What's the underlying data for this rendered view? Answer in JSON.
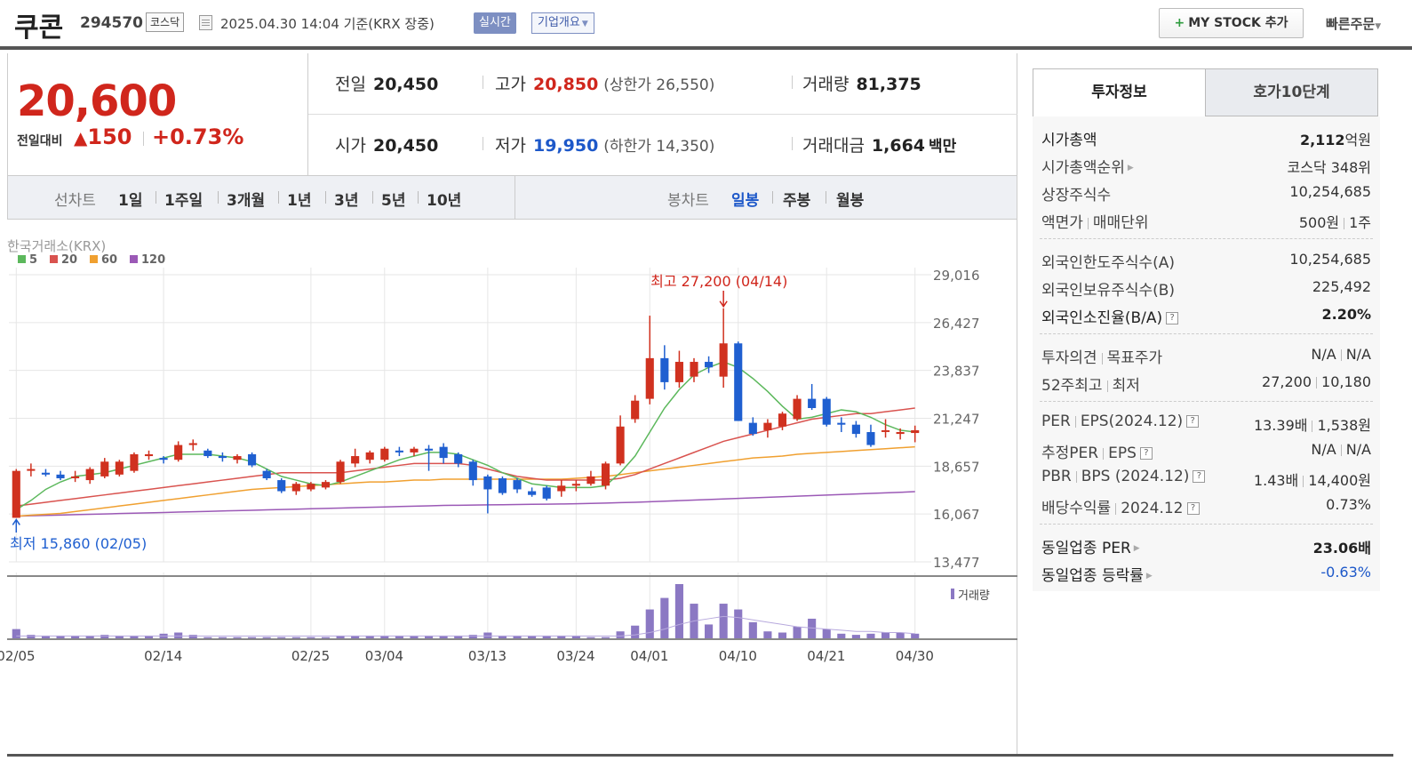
{
  "header": {
    "name": "쿠콘",
    "code": "294570",
    "market": "코스닥",
    "timestamp": "2025.04.30 14:04  기준(KRX 장중)",
    "realtime": "실시간",
    "company_info": "기업개요",
    "mystock": "MY STOCK 추가",
    "quick_order": "빠른주문"
  },
  "price": {
    "current": "20,600",
    "change_label": "전일대비",
    "change_arrow": "▲",
    "change": "150",
    "change_pct": "+0.73%"
  },
  "quote": {
    "prev_label": "전일",
    "prev": "20,450",
    "high_label": "고가",
    "high": "20,850",
    "upper_limit": "(상한가 26,550)",
    "volume_label": "거래량",
    "volume": "81,375",
    "open_label": "시가",
    "open": "20,450",
    "low_label": "저가",
    "low": "19,950",
    "lower_limit": "(하한가 14,350)",
    "amount_label": "거래대금",
    "amount": "1,664",
    "amount_unit": "백만"
  },
  "periods": {
    "line_label": "선차트",
    "line": [
      "1일",
      "1주일",
      "3개월",
      "1년",
      "3년",
      "5년",
      "10년"
    ],
    "candle_label": "봉차트",
    "candle": [
      "일봉",
      "주봉",
      "월봉"
    ]
  },
  "chart_data": {
    "type": "candlestick",
    "source_label": "한국거래소(KRX)",
    "legend": [
      {
        "name": "5",
        "color": "#5cb85c"
      },
      {
        "name": "20",
        "color": "#d9534f"
      },
      {
        "name": "60",
        "color": "#f0a030"
      },
      {
        "name": "120",
        "color": "#9b59b6"
      }
    ],
    "y_ticks": [
      "29,016",
      "26,427",
      "23,837",
      "21,247",
      "18,657",
      "16,067",
      "13,477"
    ],
    "ylim": [
      13477,
      29016
    ],
    "x_ticks": [
      "02/05",
      "02/14",
      "02/25",
      "03/04",
      "03/13",
      "03/24",
      "04/01",
      "04/10",
      "04/21",
      "04/30"
    ],
    "max_annotation": "최고 27,200 (04/14)",
    "min_annotation": "최저 15,860 (02/05)",
    "volume_label": "거래량",
    "candles": [
      {
        "o": 15860,
        "h": 18500,
        "l": 15860,
        "c": 18400
      },
      {
        "o": 18450,
        "h": 18800,
        "l": 18100,
        "c": 18500
      },
      {
        "o": 18300,
        "h": 18500,
        "l": 18100,
        "c": 18200
      },
      {
        "o": 18200,
        "h": 18400,
        "l": 17900,
        "c": 18000
      },
      {
        "o": 18000,
        "h": 18400,
        "l": 17800,
        "c": 18100
      },
      {
        "o": 17900,
        "h": 18600,
        "l": 17700,
        "c": 18500
      },
      {
        "o": 18100,
        "h": 19100,
        "l": 18000,
        "c": 18900
      },
      {
        "o": 18200,
        "h": 19000,
        "l": 18100,
        "c": 18900
      },
      {
        "o": 18400,
        "h": 19400,
        "l": 18300,
        "c": 19300
      },
      {
        "o": 19200,
        "h": 19500,
        "l": 19000,
        "c": 19300
      },
      {
        "o": 19100,
        "h": 19200,
        "l": 18800,
        "c": 19000
      },
      {
        "o": 19000,
        "h": 20000,
        "l": 18900,
        "c": 19800
      },
      {
        "o": 19800,
        "h": 20100,
        "l": 19500,
        "c": 19900
      },
      {
        "o": 19500,
        "h": 19600,
        "l": 19100,
        "c": 19200
      },
      {
        "o": 19200,
        "h": 19400,
        "l": 18900,
        "c": 19100
      },
      {
        "o": 19000,
        "h": 19300,
        "l": 18800,
        "c": 19200
      },
      {
        "o": 19300,
        "h": 19400,
        "l": 18600,
        "c": 18700
      },
      {
        "o": 18400,
        "h": 18500,
        "l": 17900,
        "c": 18000
      },
      {
        "o": 17900,
        "h": 18000,
        "l": 17200,
        "c": 17300
      },
      {
        "o": 17300,
        "h": 17800,
        "l": 17100,
        "c": 17700
      },
      {
        "o": 17400,
        "h": 17800,
        "l": 17300,
        "c": 17700
      },
      {
        "o": 17500,
        "h": 17900,
        "l": 17400,
        "c": 17800
      },
      {
        "o": 17800,
        "h": 19000,
        "l": 17700,
        "c": 18900
      },
      {
        "o": 18800,
        "h": 19600,
        "l": 18600,
        "c": 19200
      },
      {
        "o": 19000,
        "h": 19500,
        "l": 18800,
        "c": 19400
      },
      {
        "o": 19000,
        "h": 19700,
        "l": 18900,
        "c": 19600
      },
      {
        "o": 19500,
        "h": 19700,
        "l": 19200,
        "c": 19400
      },
      {
        "o": 19400,
        "h": 19700,
        "l": 19200,
        "c": 19600
      },
      {
        "o": 19600,
        "h": 19800,
        "l": 18400,
        "c": 19500
      },
      {
        "o": 19700,
        "h": 19900,
        "l": 18800,
        "c": 19100
      },
      {
        "o": 19300,
        "h": 19400,
        "l": 18600,
        "c": 18800
      },
      {
        "o": 18900,
        "h": 19000,
        "l": 17600,
        "c": 17900
      },
      {
        "o": 18100,
        "h": 18200,
        "l": 16100,
        "c": 17400
      },
      {
        "o": 18000,
        "h": 18100,
        "l": 17100,
        "c": 17200
      },
      {
        "o": 17900,
        "h": 18000,
        "l": 17200,
        "c": 17400
      },
      {
        "o": 17300,
        "h": 17500,
        "l": 17000,
        "c": 17100
      },
      {
        "o": 17500,
        "h": 17600,
        "l": 16800,
        "c": 16900
      },
      {
        "o": 17300,
        "h": 17900,
        "l": 17000,
        "c": 17600
      },
      {
        "o": 17600,
        "h": 17900,
        "l": 17300,
        "c": 17700
      },
      {
        "o": 17700,
        "h": 18400,
        "l": 17600,
        "c": 18100
      },
      {
        "o": 17600,
        "h": 18900,
        "l": 17400,
        "c": 18800
      },
      {
        "o": 18800,
        "h": 21400,
        "l": 18700,
        "c": 20800
      },
      {
        "o": 21200,
        "h": 22500,
        "l": 21000,
        "c": 22200
      },
      {
        "o": 22300,
        "h": 26800,
        "l": 22000,
        "c": 24500
      },
      {
        "o": 24500,
        "h": 25200,
        "l": 22800,
        "c": 23200
      },
      {
        "o": 23200,
        "h": 24900,
        "l": 22900,
        "c": 24300
      },
      {
        "o": 23500,
        "h": 24500,
        "l": 23200,
        "c": 24300
      },
      {
        "o": 24300,
        "h": 24600,
        "l": 23700,
        "c": 24000
      },
      {
        "o": 23500,
        "h": 27200,
        "l": 22900,
        "c": 25300
      },
      {
        "o": 25300,
        "h": 25400,
        "l": 21100,
        "c": 21100
      },
      {
        "o": 21000,
        "h": 21300,
        "l": 20300,
        "c": 20400
      },
      {
        "o": 20600,
        "h": 21200,
        "l": 20200,
        "c": 21000
      },
      {
        "o": 20800,
        "h": 21600,
        "l": 20600,
        "c": 21500
      },
      {
        "o": 21200,
        "h": 22500,
        "l": 21100,
        "c": 22300
      },
      {
        "o": 22300,
        "h": 23100,
        "l": 21700,
        "c": 21800
      },
      {
        "o": 22300,
        "h": 22400,
        "l": 20800,
        "c": 20900
      },
      {
        "o": 21000,
        "h": 21300,
        "l": 20500,
        "c": 20900
      },
      {
        "o": 20900,
        "h": 21100,
        "l": 20200,
        "c": 20400
      },
      {
        "o": 20500,
        "h": 20900,
        "l": 19700,
        "c": 19800
      },
      {
        "o": 20600,
        "h": 21200,
        "l": 20200,
        "c": 20600
      },
      {
        "o": 20400,
        "h": 20700,
        "l": 20100,
        "c": 20500
      },
      {
        "o": 20450,
        "h": 20850,
        "l": 19950,
        "c": 20600
      }
    ],
    "ma5": [
      16300,
      16800,
      17400,
      17800,
      18100,
      18200,
      18300,
      18500,
      18700,
      18900,
      19100,
      19300,
      19300,
      19300,
      19200,
      19100,
      18900,
      18500,
      18100,
      17900,
      17700,
      17600,
      17800,
      18100,
      18400,
      18700,
      19000,
      19200,
      19400,
      19400,
      19300,
      19000,
      18700,
      18300,
      18000,
      17700,
      17600,
      17500,
      17500,
      17500,
      17600,
      18300,
      19200,
      20500,
      21800,
      22800,
      23600,
      24000,
      24300,
      24000,
      23400,
      22700,
      21900,
      21200,
      21300,
      21500,
      21700,
      21600,
      21300,
      20900,
      20600,
      20500
    ],
    "ma20": [
      16500,
      16600,
      16700,
      16800,
      16900,
      17000,
      17100,
      17200,
      17300,
      17400,
      17500,
      17600,
      17700,
      17800,
      17900,
      18000,
      18100,
      18200,
      18300,
      18300,
      18300,
      18300,
      18300,
      18400,
      18500,
      18600,
      18700,
      18800,
      18800,
      18800,
      18800,
      18700,
      18500,
      18300,
      18100,
      18000,
      17900,
      17900,
      17900,
      17900,
      17900,
      18000,
      18200,
      18500,
      18800,
      19100,
      19400,
      19700,
      20000,
      20200,
      20400,
      20600,
      20800,
      21000,
      21200,
      21300,
      21400,
      21500,
      21500,
      21600,
      21700,
      21800
    ],
    "ma60": [
      15950,
      16000,
      16050,
      16100,
      16200,
      16300,
      16400,
      16500,
      16600,
      16700,
      16800,
      16900,
      17000,
      17100,
      17200,
      17300,
      17400,
      17450,
      17500,
      17550,
      17600,
      17650,
      17700,
      17750,
      17800,
      17800,
      17850,
      17900,
      17900,
      17950,
      17950,
      17950,
      17950,
      17950,
      17950,
      17950,
      17950,
      17950,
      18000,
      18050,
      18100,
      18200,
      18300,
      18400,
      18500,
      18600,
      18700,
      18800,
      18900,
      19000,
      19100,
      19150,
      19200,
      19300,
      19350,
      19400,
      19450,
      19500,
      19550,
      19600,
      19650,
      19700
    ],
    "ma120": [
      15950,
      15970,
      15990,
      16010,
      16030,
      16050,
      16070,
      16090,
      16110,
      16130,
      16150,
      16170,
      16190,
      16210,
      16230,
      16250,
      16270,
      16290,
      16310,
      16330,
      16350,
      16370,
      16390,
      16410,
      16430,
      16450,
      16470,
      16490,
      16510,
      16530,
      16540,
      16550,
      16560,
      16570,
      16580,
      16590,
      16600,
      16610,
      16620,
      16640,
      16660,
      16680,
      16700,
      16730,
      16760,
      16790,
      16820,
      16850,
      16880,
      16910,
      16940,
      16970,
      17000,
      17030,
      17060,
      17090,
      17120,
      17150,
      17180,
      17210,
      17240,
      17280
    ],
    "volume": [
      8,
      3,
      2,
      2,
      2,
      2,
      3,
      2,
      2,
      2,
      4,
      5,
      3,
      1,
      1,
      1,
      1,
      1,
      1,
      1,
      1,
      1,
      2,
      2,
      2,
      2,
      2,
      2,
      2,
      2,
      2,
      3,
      5,
      2,
      2,
      2,
      2,
      2,
      2,
      1,
      1,
      6,
      11,
      25,
      35,
      47,
      30,
      12,
      30,
      25,
      14,
      6,
      5,
      10,
      17,
      8,
      4,
      3,
      4,
      5,
      5,
      4
    ],
    "ma_volume": [
      2,
      2,
      2,
      2,
      2,
      2,
      2,
      2,
      2,
      2,
      2,
      2,
      2,
      2,
      2,
      2,
      2,
      2,
      2,
      2,
      2,
      2,
      2,
      2,
      2,
      2,
      2,
      2,
      2,
      2,
      2,
      2,
      2,
      2,
      2,
      2,
      2,
      2,
      2,
      2,
      2,
      2,
      3,
      5,
      8,
      12,
      15,
      17,
      19,
      18,
      16,
      14,
      12,
      10,
      9,
      8,
      7,
      6,
      6,
      5,
      5,
      4
    ]
  },
  "tabs": {
    "invest": "투자정보",
    "hoga": "호가10단계"
  },
  "info": {
    "market_cap_label": "시가총액",
    "market_cap": "2,112",
    "market_cap_unit": "억원",
    "rank_label": "시가총액순위",
    "rank": "코스닥 348위",
    "shares_label": "상장주식수",
    "shares": "10,254,685",
    "par_label": "액면가",
    "trade_unit_label": "매매단위",
    "par": "500원",
    "trade_unit": "1주",
    "foreign_limit_label": "외국인한도주식수(A)",
    "foreign_limit": "10,254,685",
    "foreign_hold_label": "외국인보유주식수(B)",
    "foreign_hold": "225,492",
    "foreign_ratio_label": "외국인소진율(B/A)",
    "foreign_ratio": "2.20%",
    "opinion_label": "투자의견",
    "target_label": "목표주가",
    "opinion": "N/A",
    "target": "N/A",
    "w52high_label": "52주최고",
    "w52low_label": "최저",
    "w52high": "27,200",
    "w52low": "10,180",
    "per_label": "PER",
    "eps_label": "EPS(2024.12)",
    "per": "13.39배",
    "eps": "1,538원",
    "est_per_label": "추정PER",
    "est_eps_label": "EPS",
    "est_per": "N/A",
    "est_eps": "N/A",
    "pbr_label": "PBR",
    "bps_label": "BPS (2024.12)",
    "pbr": "1.43배",
    "bps": "14,400원",
    "div_label": "배당수익률",
    "div_date": "2024.12",
    "div": "0.73%",
    "sector_per_label": "동일업종 PER",
    "sector_per": "23.06배",
    "sector_chg_label": "동일업종 등락률",
    "sector_chg": "-0.63%"
  }
}
